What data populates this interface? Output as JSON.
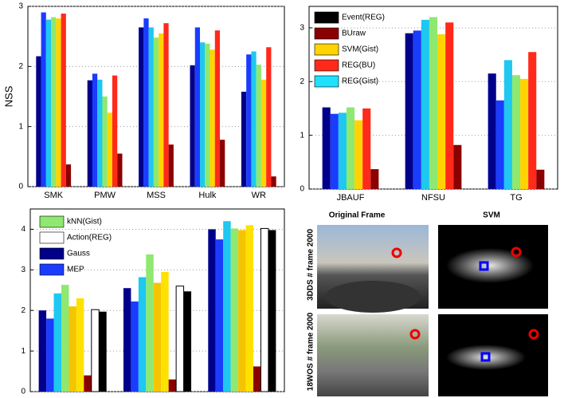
{
  "chart_data": [
    {
      "type": "bar",
      "y_label": "NSS",
      "categories": [
        "SMK",
        "PMW",
        "MSS",
        "Hulk",
        "WR"
      ],
      "ylim": [
        0,
        3
      ],
      "yticks": [
        0,
        1,
        2,
        3
      ],
      "grid": true,
      "series": [
        {
          "color": "#00008b",
          "values": [
            2.17,
            1.77,
            2.65,
            2.02,
            1.58
          ]
        },
        {
          "color": "#1a3cff",
          "values": [
            2.9,
            1.88,
            2.8,
            2.65,
            2.2
          ]
        },
        {
          "color": "#1ec8f0",
          "values": [
            2.78,
            1.78,
            2.65,
            2.4,
            2.25
          ]
        },
        {
          "color": "#8fe870",
          "values": [
            2.82,
            1.5,
            2.48,
            2.38,
            2.03
          ]
        },
        {
          "color": "#ffd400",
          "values": [
            2.8,
            1.23,
            2.55,
            2.28,
            1.78
          ]
        },
        {
          "color": "#ff2a1a",
          "values": [
            2.88,
            1.85,
            2.72,
            2.6,
            2.32
          ]
        },
        {
          "color": "#8b0000",
          "values": [
            0.37,
            0.55,
            0.7,
            0.78,
            0.17
          ]
        }
      ]
    },
    {
      "type": "bar",
      "categories": [
        "JBAUF",
        "NFSU",
        "TG"
      ],
      "ylim": [
        0,
        3.4
      ],
      "yticks": [
        0,
        1,
        2,
        3
      ],
      "grid": true,
      "legend": [
        {
          "name": "Event(REG)",
          "color": "#000000"
        },
        {
          "name": "BUraw",
          "color": "#8b0000"
        },
        {
          "name": "SVM(Gist)",
          "color": "#ffd400"
        },
        {
          "name": "REG(BU)",
          "color": "#ff2a1a"
        },
        {
          "name": "REG(Gist)",
          "color": "#1ee0ff"
        }
      ],
      "series": [
        {
          "color": "#00008b",
          "values": [
            1.52,
            2.9,
            2.15
          ]
        },
        {
          "color": "#1a3cff",
          "values": [
            1.4,
            2.95,
            1.65
          ]
        },
        {
          "color": "#1ec8f0",
          "values": [
            1.42,
            3.15,
            2.4
          ]
        },
        {
          "color": "#8fe870",
          "values": [
            1.52,
            3.2,
            2.12
          ]
        },
        {
          "color": "#ffd400",
          "values": [
            1.28,
            2.88,
            2.05
          ]
        },
        {
          "color": "#ff2a1a",
          "values": [
            1.5,
            3.1,
            2.55
          ]
        },
        {
          "color": "#8b0000",
          "values": [
            0.37,
            0.82,
            0.36
          ]
        }
      ]
    },
    {
      "type": "bar",
      "categories": [
        null,
        null,
        null
      ],
      "ylim": [
        0,
        4.5
      ],
      "yticks": [
        0,
        1,
        2,
        3,
        4
      ],
      "grid": true,
      "legend": [
        {
          "name": "kNN(Gist)",
          "color": "#8fe870"
        },
        {
          "name": "Action(REG)",
          "color": "#ffffff"
        },
        {
          "name": "Gauss",
          "color": "#00008b"
        },
        {
          "name": "MEP",
          "color": "#1a3cff"
        }
      ],
      "series": [
        {
          "color": "#00008b",
          "values": [
            2.0,
            2.55,
            4.0
          ]
        },
        {
          "color": "#1a3cff",
          "values": [
            1.8,
            2.22,
            3.75
          ]
        },
        {
          "color": "#1ec8f0",
          "values": [
            2.42,
            2.82,
            4.2
          ]
        },
        {
          "color": "#8fe870",
          "values": [
            2.63,
            3.38,
            4.02
          ]
        },
        {
          "color": "#f5c400",
          "values": [
            2.1,
            2.68,
            3.98
          ]
        },
        {
          "color": "#ffe100",
          "values": [
            2.3,
            2.95,
            4.1
          ]
        },
        {
          "color": "#8b0000",
          "values": [
            0.4,
            0.3,
            0.62
          ]
        },
        {
          "color": "#ffffff",
          "values": [
            2.02,
            2.6,
            4.02
          ]
        },
        {
          "color": "#000000",
          "values": [
            1.97,
            2.47,
            3.98
          ]
        }
      ]
    }
  ],
  "image_grid": {
    "column_titles": [
      "Original Frame",
      "SVM"
    ],
    "row_labels": [
      "3DDS  # frame 2000",
      "18WOS # frame 2000"
    ]
  }
}
